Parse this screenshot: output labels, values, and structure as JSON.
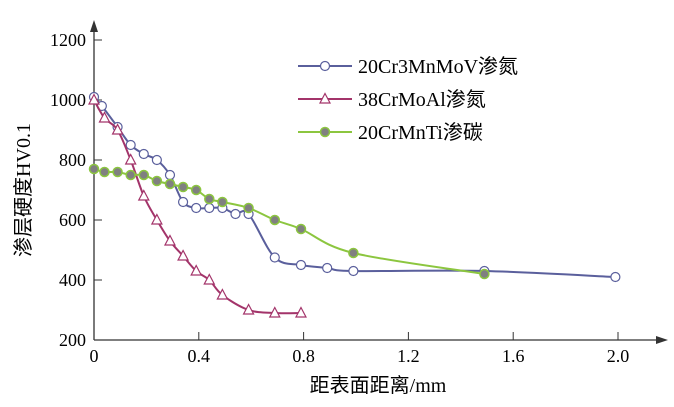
{
  "chart_data": {
    "type": "line",
    "xlabel": "距表面距离/mm",
    "ylabel": "渗层硬度HV0.1",
    "xlim": [
      0,
      2.2
    ],
    "ylim": [
      200,
      1200
    ],
    "xticks": [
      0,
      0.4,
      0.8,
      1.2,
      1.6,
      2.0
    ],
    "xtick_labels": [
      "0",
      "0.4",
      "0.8",
      "1.2",
      "1.6",
      "2.0"
    ],
    "yticks": [
      200,
      400,
      600,
      800,
      1000,
      1200
    ],
    "ytick_labels": [
      "200",
      "400",
      "600",
      "800",
      "1000",
      "1200"
    ],
    "grid": false,
    "legend_position": "top-right",
    "series": [
      {
        "name": "20Cr3MnMoV渗氮",
        "color": "#5a5f9c",
        "marker": "open-circle",
        "x": [
          0,
          0.03,
          0.09,
          0.14,
          0.19,
          0.24,
          0.29,
          0.34,
          0.39,
          0.44,
          0.49,
          0.54,
          0.59,
          0.69,
          0.79,
          0.89,
          0.99,
          1.49,
          1.99
        ],
        "y": [
          1010,
          980,
          910,
          850,
          820,
          800,
          750,
          660,
          640,
          640,
          640,
          620,
          620,
          475,
          450,
          440,
          430,
          430,
          410
        ]
      },
      {
        "name": "38CrMoAl渗氮",
        "color": "#a3346a",
        "marker": "open-triangle",
        "x": [
          0,
          0.04,
          0.09,
          0.14,
          0.19,
          0.24,
          0.29,
          0.34,
          0.39,
          0.44,
          0.49,
          0.59,
          0.69,
          0.79
        ],
        "y": [
          1000,
          940,
          900,
          800,
          680,
          600,
          530,
          480,
          430,
          400,
          350,
          300,
          290,
          290
        ]
      },
      {
        "name": "20CrMnTi渗碳",
        "color": "#8cc63f",
        "marker": "filled-circle",
        "x": [
          0,
          0.04,
          0.09,
          0.14,
          0.19,
          0.24,
          0.29,
          0.34,
          0.39,
          0.44,
          0.49,
          0.59,
          0.69,
          0.79,
          0.99,
          1.49
        ],
        "y": [
          770,
          760,
          760,
          750,
          750,
          730,
          720,
          710,
          700,
          670,
          660,
          640,
          600,
          570,
          490,
          420
        ]
      }
    ]
  }
}
